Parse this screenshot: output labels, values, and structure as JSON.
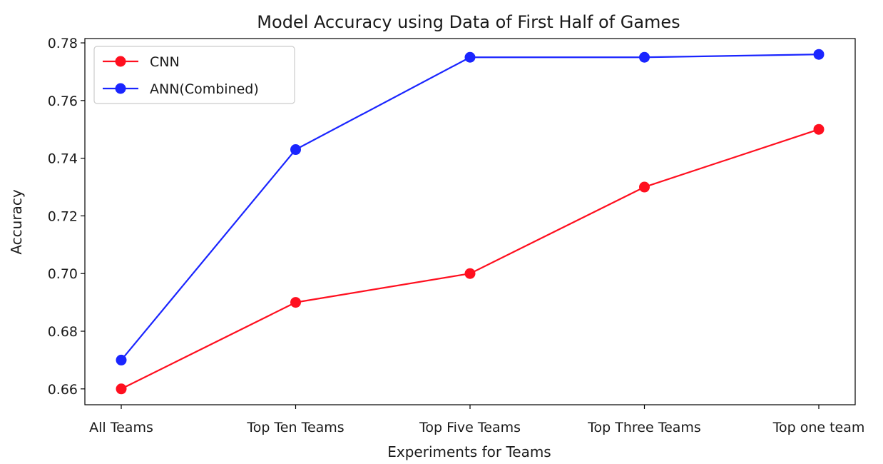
{
  "chart_data": {
    "type": "line",
    "title": "Model Accuracy using Data of First Half of Games",
    "xlabel": "Experiments for Teams",
    "ylabel": "Accuracy",
    "categories": [
      "All Teams",
      "Top Ten Teams",
      "Top Five Teams",
      "Top Three Teams",
      "Top one team"
    ],
    "ylim": [
      0.6545,
      0.7815
    ],
    "yticks": [
      "0.66",
      "0.68",
      "0.70",
      "0.72",
      "0.74",
      "0.76",
      "0.78"
    ],
    "grid": false,
    "legend_position": "top-left",
    "series": [
      {
        "name": "CNN",
        "color": "#ff0f1f",
        "values": [
          0.66,
          0.69,
          0.7,
          0.73,
          0.75
        ]
      },
      {
        "name": "ANN(Combined)",
        "color": "#1a25ff",
        "values": [
          0.67,
          0.743,
          0.775,
          0.775,
          0.776
        ]
      }
    ]
  }
}
